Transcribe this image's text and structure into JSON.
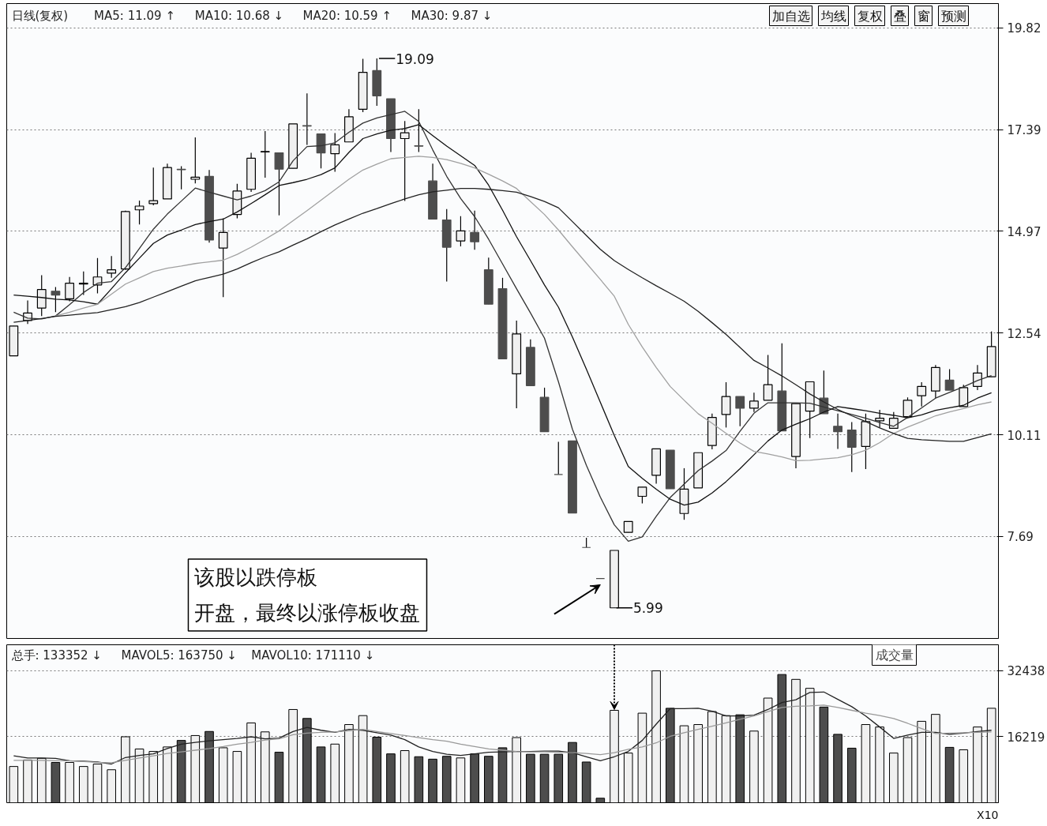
{
  "chart_data": [
    {
      "type": "candlestick",
      "title": "日线(复权)",
      "annotations": [
        "MA5: 11.09 ↑",
        "MA10: 10.68 ↓",
        "MA20: 10.59 ↑",
        "MA30: 9.87 ↓",
        "加自选",
        "均线",
        "复权",
        "叠",
        "窗",
        "预测",
        "19.09",
        "5.99",
        "该股以跌停板开盘，最终以涨停板收盘"
      ],
      "categories": [
        null,
        null,
        null,
        null,
        null,
        null,
        null,
        null,
        null,
        null,
        null,
        null,
        null,
        null,
        null,
        null,
        null,
        null,
        null,
        null,
        null,
        null,
        null,
        null,
        null,
        null,
        null,
        null,
        null,
        null,
        null,
        null,
        null,
        null,
        null,
        null,
        null,
        null,
        null,
        null,
        null,
        null,
        null,
        null,
        null,
        null,
        null,
        null,
        null,
        null,
        null,
        null,
        null,
        null,
        null,
        null,
        null,
        null,
        null,
        null,
        null,
        null,
        null,
        null,
        null,
        null,
        null,
        null,
        null,
        null,
        null
      ],
      "ohlc": [
        [
          12.0,
          12.71,
          12.0,
          12.71
        ],
        [
          12.84,
          13.32,
          12.76,
          13.02
        ],
        [
          13.14,
          13.92,
          12.95,
          13.58
        ],
        [
          13.54,
          13.64,
          13.04,
          13.45
        ],
        [
          13.36,
          13.88,
          13.3,
          13.73
        ],
        [
          13.71,
          14.01,
          13.45,
          13.73
        ],
        [
          13.69,
          14.33,
          13.49,
          13.88
        ],
        [
          13.97,
          14.38,
          13.86,
          14.05
        ],
        [
          14.07,
          15.46,
          14.05,
          15.44
        ],
        [
          15.48,
          15.7,
          15.13,
          15.57
        ],
        [
          15.63,
          16.49,
          15.59,
          15.7
        ],
        [
          15.74,
          16.58,
          15.74,
          16.49
        ],
        [
          16.45,
          16.52,
          15.97,
          16.44
        ],
        [
          16.21,
          17.21,
          16.11,
          16.26
        ],
        [
          16.28,
          16.43,
          14.7,
          14.76
        ],
        [
          14.57,
          15.28,
          13.4,
          14.94
        ],
        [
          15.37,
          16.1,
          15.28,
          15.93
        ],
        [
          15.97,
          16.84,
          15.91,
          16.71
        ],
        [
          16.86,
          17.36,
          16.25,
          16.87
        ],
        [
          16.84,
          16.84,
          15.35,
          16.45
        ],
        [
          16.47,
          17.53,
          16.47,
          17.53
        ],
        [
          17.49,
          18.26,
          17.03,
          17.48
        ],
        [
          17.29,
          17.29,
          16.47,
          16.84
        ],
        [
          16.82,
          17.31,
          16.39,
          17.03
        ],
        [
          17.1,
          17.88,
          17.1,
          17.7
        ],
        [
          17.88,
          19.08,
          17.81,
          18.76
        ],
        [
          18.8,
          19.09,
          17.96,
          18.2
        ],
        [
          18.13,
          18.13,
          16.86,
          17.18
        ],
        [
          17.18,
          17.6,
          15.69,
          17.32
        ],
        [
          17.01,
          17.88,
          16.86,
          17.0
        ],
        [
          16.17,
          16.58,
          15.26,
          15.26
        ],
        [
          15.24,
          15.5,
          13.77,
          14.59
        ],
        [
          14.74,
          15.33,
          14.61,
          14.98
        ],
        [
          14.94,
          15.46,
          14.53,
          14.72
        ],
        [
          14.05,
          14.34,
          13.23,
          13.23
        ],
        [
          13.6,
          13.86,
          11.93,
          11.93
        ],
        [
          11.57,
          12.84,
          10.75,
          12.52
        ],
        [
          12.2,
          12.39,
          11.29,
          11.29
        ],
        [
          11.01,
          11.24,
          10.19,
          10.19
        ],
        [
          9.17,
          9.95,
          9.17,
          9.17
        ],
        [
          9.97,
          9.97,
          8.25,
          8.25
        ],
        [
          7.43,
          7.66,
          7.43,
          7.43
        ],
        [
          6.69,
          6.69,
          6.69,
          6.69
        ],
        [
          5.99,
          7.36,
          5.99,
          7.36
        ],
        [
          7.79,
          8.05,
          7.79,
          8.05
        ],
        [
          8.65,
          8.87,
          8.48,
          8.87
        ],
        [
          9.15,
          9.78,
          8.95,
          9.78
        ],
        [
          9.75,
          9.75,
          8.83,
          8.83
        ],
        [
          8.24,
          9.32,
          8.09,
          8.82
        ],
        [
          8.85,
          9.69,
          8.85,
          9.69
        ],
        [
          9.86,
          10.62,
          9.77,
          10.53
        ],
        [
          10.6,
          11.37,
          10.29,
          11.03
        ],
        [
          11.03,
          11.03,
          10.32,
          10.75
        ],
        [
          10.75,
          11.12,
          10.66,
          10.92
        ],
        [
          10.94,
          12.02,
          10.94,
          11.31
        ],
        [
          11.16,
          12.3,
          10.21,
          10.21
        ],
        [
          9.6,
          10.86,
          9.32,
          10.86
        ],
        [
          10.68,
          11.38,
          10.04,
          11.38
        ],
        [
          10.99,
          11.65,
          10.62,
          10.62
        ],
        [
          10.32,
          10.62,
          9.78,
          10.19
        ],
        [
          10.23,
          10.42,
          9.23,
          9.82
        ],
        [
          9.84,
          10.62,
          9.3,
          10.43
        ],
        [
          10.45,
          10.71,
          10.29,
          10.51
        ],
        [
          10.27,
          10.66,
          10.27,
          10.51
        ],
        [
          10.55,
          11.01,
          10.55,
          10.94
        ],
        [
          11.05,
          11.37,
          10.79,
          11.27
        ],
        [
          11.16,
          11.78,
          10.99,
          11.72
        ],
        [
          11.42,
          11.68,
          11.18,
          11.18
        ],
        [
          10.79,
          11.31,
          10.79,
          11.24
        ],
        [
          11.27,
          11.78,
          11.18,
          11.59
        ],
        [
          11.5,
          12.58,
          11.5,
          12.22
        ]
      ],
      "colors": [
        "#f0f0f0",
        "#f0f0f0",
        "#f0f0f0",
        "#4d4d4d",
        "#f0f0f0",
        "#f0f0f0",
        "#f0f0f0",
        "#f0f0f0",
        "#f0f0f0",
        "#f0f0f0",
        "#f0f0f0",
        "#f0f0f0",
        "#4d4d4d",
        "#f0f0f0",
        "#4d4d4d",
        "#f0f0f0",
        "#f0f0f0",
        "#f0f0f0",
        "#f0f0f0",
        "#4d4d4d",
        "#f0f0f0",
        "#4d4d4d",
        "#4d4d4d",
        "#f0f0f0",
        "#f0f0f0",
        "#f0f0f0",
        "#4d4d4d",
        "#4d4d4d",
        "#f0f0f0",
        "#4d4d4d",
        "#4d4d4d",
        "#4d4d4d",
        "#f0f0f0",
        "#4d4d4d",
        "#4d4d4d",
        "#4d4d4d",
        "#f0f0f0",
        "#4d4d4d",
        "#4d4d4d",
        "#4d4d4d",
        "#4d4d4d",
        "#4d4d4d",
        "#4d4d4d",
        "#f0f0f0",
        "#f0f0f0",
        "#f0f0f0",
        "#f0f0f0",
        "#4d4d4d",
        "#f0f0f0",
        "#f0f0f0",
        "#f0f0f0",
        "#f0f0f0",
        "#4d4d4d",
        "#f0f0f0",
        "#f0f0f0",
        "#4d4d4d",
        "#f0f0f0",
        "#f0f0f0",
        "#4d4d4d",
        "#4d4d4d",
        "#4d4d4d",
        "#f0f0f0",
        "#f0f0f0",
        "#f0f0f0",
        "#f0f0f0",
        "#f0f0f0",
        "#f0f0f0",
        "#4d4d4d",
        "#f0f0f0",
        "#f0f0f0",
        "#f0f0f0"
      ],
      "series": [
        {
          "type": "line",
          "color": "#333333",
          "values": [
            13.04,
            12.9,
            12.88,
            12.95,
            13.22,
            13.51,
            13.73,
            13.77,
            14.1,
            14.56,
            15.02,
            15.38,
            15.69,
            16.0,
            15.9,
            15.81,
            15.72,
            15.81,
            15.94,
            16.15,
            16.65,
            16.99,
            17.01,
            17.08,
            17.33,
            17.55,
            17.67,
            17.75,
            17.83,
            17.59,
            16.91,
            16.28,
            15.75,
            15.32,
            14.78,
            14.19,
            13.6,
            13.02,
            12.42,
            11.38,
            10.25,
            9.39,
            8.63,
            7.97,
            7.58,
            7.68,
            8.17,
            8.62,
            8.94,
            9.26,
            9.49,
            9.74,
            10.2,
            10.63,
            10.88,
            10.88,
            10.88,
            10.87,
            10.78,
            10.69,
            10.6,
            10.51,
            10.41,
            10.32,
            10.53,
            10.76,
            10.99,
            11.13,
            11.26,
            11.41,
            11.53
          ]
        },
        {
          "type": "line",
          "color": "#111111",
          "values": [
            13.45,
            13.42,
            13.39,
            13.35,
            13.33,
            13.29,
            13.23,
            13.6,
            13.98,
            14.33,
            14.68,
            14.88,
            15.0,
            15.13,
            15.2,
            15.26,
            15.43,
            15.63,
            15.84,
            16.06,
            16.13,
            16.21,
            16.32,
            16.48,
            16.85,
            17.18,
            17.29,
            17.38,
            17.42,
            17.51,
            17.25,
            17.0,
            16.77,
            16.54,
            16.07,
            15.47,
            14.84,
            14.27,
            13.69,
            13.16,
            12.45,
            11.68,
            10.89,
            10.1,
            9.36,
            9.08,
            8.82,
            8.58,
            8.44,
            8.51,
            8.73,
            9.0,
            9.31,
            9.64,
            9.97,
            10.23,
            10.37,
            10.5,
            10.66,
            10.79,
            10.74,
            10.69,
            10.63,
            10.58,
            10.52,
            10.59,
            10.7,
            10.76,
            10.82,
            10.99,
            11.12
          ]
        },
        {
          "type": "line",
          "color": "#a0a0a0",
          "values": [
            null,
            null,
            null,
            12.95,
            13.04,
            13.14,
            13.23,
            13.47,
            13.71,
            13.86,
            14.01,
            14.09,
            14.14,
            14.2,
            14.24,
            14.28,
            14.42,
            14.59,
            14.78,
            14.98,
            15.22,
            15.46,
            15.71,
            15.96,
            16.21,
            16.43,
            16.57,
            16.7,
            16.73,
            16.76,
            16.73,
            16.68,
            16.59,
            16.48,
            16.33,
            16.17,
            15.99,
            15.68,
            15.37,
            15.0,
            14.6,
            14.21,
            13.82,
            13.42,
            12.75,
            12.21,
            11.72,
            11.27,
            10.94,
            10.62,
            10.39,
            10.15,
            9.92,
            9.72,
            9.66,
            9.59,
            9.5,
            9.51,
            9.54,
            9.57,
            9.64,
            9.75,
            9.93,
            10.15,
            10.3,
            10.43,
            10.57,
            10.66,
            10.74,
            10.83,
            10.9
          ]
        },
        {
          "type": "line",
          "color": "#222222",
          "values": [
            12.8,
            12.84,
            12.89,
            12.94,
            12.97,
            13.0,
            13.03,
            13.1,
            13.17,
            13.27,
            13.4,
            13.53,
            13.66,
            13.79,
            13.87,
            13.95,
            14.07,
            14.22,
            14.36,
            14.48,
            14.64,
            14.79,
            14.96,
            15.12,
            15.26,
            15.4,
            15.51,
            15.63,
            15.74,
            15.84,
            15.91,
            15.95,
            15.99,
            15.99,
            15.97,
            15.94,
            15.9,
            15.8,
            15.68,
            15.53,
            15.2,
            14.87,
            14.54,
            14.27,
            14.06,
            13.86,
            13.67,
            13.49,
            13.3,
            13.06,
            12.79,
            12.51,
            12.2,
            11.89,
            11.71,
            11.52,
            11.31,
            11.09,
            10.9,
            10.72,
            10.57,
            10.43,
            10.28,
            10.15,
            10.03,
            10.0,
            9.98,
            9.96,
            9.96,
            10.05,
            10.14
          ]
        }
      ],
      "ylim": [
        5.26,
        20.4
      ],
      "yticks": [
        7.69,
        10.11,
        12.54,
        14.97,
        17.39,
        19.82
      ],
      "grid": "y",
      "tick_labels": "y"
    },
    {
      "type": "bar",
      "annotations": [
        "总手: 133352 ↓",
        "MAVOL5: 163750 ↓",
        "MAVOL10: 171110 ↓",
        "成交量",
        "X10"
      ],
      "categories": [
        null,
        null,
        null,
        null,
        null,
        null,
        null,
        null,
        null,
        null,
        null,
        null,
        null,
        null,
        null,
        null,
        null,
        null,
        null,
        null,
        null,
        null,
        null,
        null,
        null,
        null,
        null,
        null,
        null,
        null,
        null,
        null,
        null,
        null,
        null,
        null,
        null,
        null,
        null,
        null,
        null,
        null,
        null,
        null,
        null,
        null,
        null,
        null,
        null,
        null,
        null,
        null,
        null,
        null,
        null,
        null,
        null,
        null,
        null,
        null,
        null,
        null,
        null,
        null,
        null,
        null,
        null,
        null,
        null,
        null,
        null
      ],
      "series": [
        {
          "type": "bar",
          "values": [
            8900,
            10500,
            10900,
            9900,
            9900,
            8900,
            9500,
            8100,
            16200,
            13200,
            12600,
            13700,
            15300,
            16500,
            17500,
            13500,
            12600,
            19600,
            17400,
            12400,
            22900,
            20700,
            13700,
            14400,
            19200,
            21400,
            16100,
            12000,
            12800,
            11300,
            10700,
            11400,
            11000,
            12000,
            11400,
            13500,
            16000,
            11900,
            11900,
            11900,
            14800,
            10000,
            1100,
            22700,
            12200,
            22000,
            32400,
            23200,
            18900,
            19200,
            22400,
            21400,
            21600,
            17600,
            25700,
            31500,
            30300,
            28100,
            23500,
            16800,
            13400,
            19200,
            18600,
            12200,
            16000,
            20000,
            21700,
            13600,
            13000,
            18600,
            23200
          ],
          "colors": [
            "#f0f0f0",
            "#f0f0f0",
            "#f0f0f0",
            "#4d4d4d",
            "#f0f0f0",
            "#f0f0f0",
            "#f0f0f0",
            "#f0f0f0",
            "#f0f0f0",
            "#f0f0f0",
            "#f0f0f0",
            "#f0f0f0",
            "#4d4d4d",
            "#f0f0f0",
            "#4d4d4d",
            "#f0f0f0",
            "#f0f0f0",
            "#f0f0f0",
            "#f0f0f0",
            "#4d4d4d",
            "#f0f0f0",
            "#4d4d4d",
            "#4d4d4d",
            "#f0f0f0",
            "#f0f0f0",
            "#f0f0f0",
            "#4d4d4d",
            "#4d4d4d",
            "#f0f0f0",
            "#4d4d4d",
            "#4d4d4d",
            "#4d4d4d",
            "#f0f0f0",
            "#4d4d4d",
            "#4d4d4d",
            "#4d4d4d",
            "#f0f0f0",
            "#4d4d4d",
            "#4d4d4d",
            "#4d4d4d",
            "#4d4d4d",
            "#4d4d4d",
            "#4d4d4d",
            "#f0f0f0",
            "#f0f0f0",
            "#f0f0f0",
            "#f0f0f0",
            "#4d4d4d",
            "#f0f0f0",
            "#f0f0f0",
            "#f0f0f0",
            "#f0f0f0",
            "#4d4d4d",
            "#f0f0f0",
            "#f0f0f0",
            "#4d4d4d",
            "#f0f0f0",
            "#f0f0f0",
            "#4d4d4d",
            "#4d4d4d",
            "#4d4d4d",
            "#f0f0f0",
            "#f0f0f0",
            "#f0f0f0",
            "#f0f0f0",
            "#f0f0f0",
            "#f0f0f0",
            "#4d4d4d",
            "#f0f0f0",
            "#f0f0f0",
            "#f0f0f0"
          ]
        },
        {
          "type": "line",
          "color": "#222222",
          "values": [
            11500,
            11000,
            11000,
            10900,
            10300,
            10200,
            10000,
            9500,
            11100,
            11600,
            12000,
            13300,
            14400,
            14800,
            15200,
            15500,
            15800,
            16200,
            15700,
            15900,
            17500,
            18500,
            17800,
            17300,
            18000,
            17800,
            17200,
            16600,
            15500,
            13700,
            12600,
            11900,
            11600,
            12000,
            12400,
            12500,
            12600,
            12600,
            12700,
            12700,
            12300,
            11300,
            10300,
            11300,
            12600,
            15300,
            19300,
            23100,
            23100,
            23200,
            22500,
            21300,
            21300,
            21500,
            22900,
            24600,
            25300,
            27100,
            27200,
            25400,
            23600,
            21300,
            18600,
            15800,
            16600,
            17300,
            17300,
            16800,
            17100,
            17500,
            17800
          ]
        },
        {
          "type": "line",
          "color": "#999999",
          "values": [
            10400,
            10400,
            10400,
            10300,
            10300,
            10100,
            9900,
            9800,
            10400,
            11000,
            11500,
            12100,
            12500,
            12900,
            13300,
            13800,
            14400,
            14800,
            15400,
            15700,
            16700,
            17100,
            17300,
            17400,
            17700,
            18000,
            17500,
            17000,
            16500,
            16000,
            15500,
            15100,
            14400,
            13800,
            13200,
            12900,
            12600,
            12500,
            12500,
            12400,
            12300,
            12100,
            11800,
            12300,
            13100,
            13700,
            14700,
            16300,
            17200,
            18000,
            18800,
            19600,
            20500,
            21300,
            22400,
            23400,
            23700,
            23800,
            24000,
            23400,
            22700,
            22000,
            21400,
            20700,
            19500,
            18200,
            17000,
            17100,
            17200,
            17300,
            17400
          ]
        }
      ],
      "ylim": [
        0,
        38800
      ],
      "yticks": [
        16219,
        32438
      ],
      "grid": "y",
      "tick_labels": "y"
    }
  ]
}
